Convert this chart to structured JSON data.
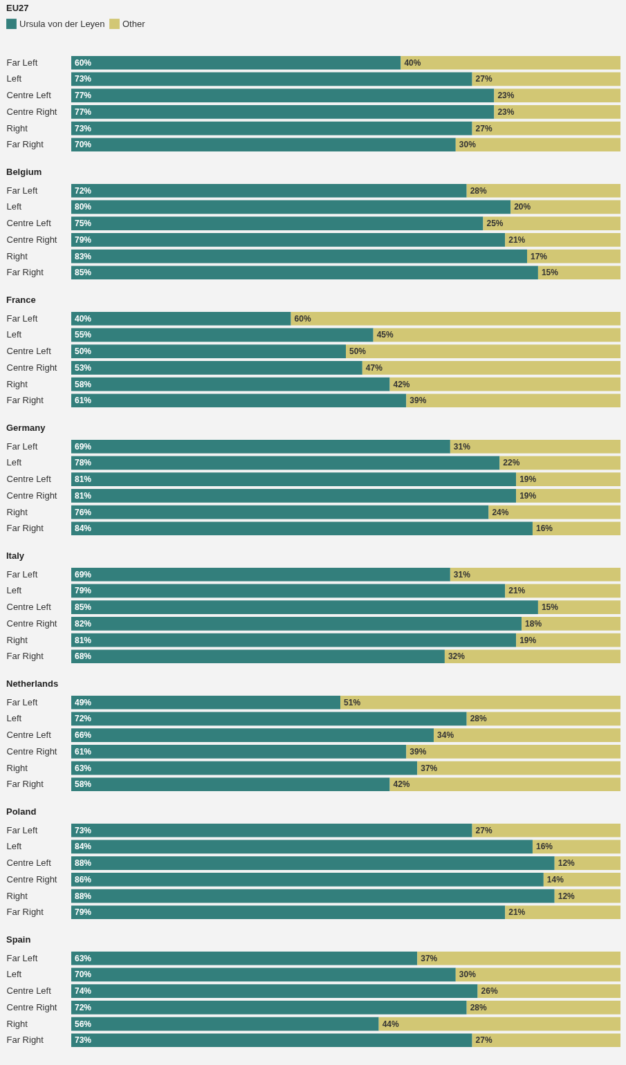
{
  "chart_data": [
    {
      "type": "bar",
      "orientation": "horizontal",
      "stacked": true,
      "title": "EU27",
      "legend": "top left",
      "categories": [
        "Far Left",
        "Left",
        "Centre Left",
        "Centre Right",
        "Right",
        "Far Right"
      ],
      "series": [
        {
          "name": "Ursula von der Leyen",
          "color": "#337f7c",
          "values": [
            60,
            73,
            77,
            77,
            73,
            70
          ],
          "value_labels": [
            "60%",
            "73%",
            "77%",
            "77%",
            "73%",
            "70%"
          ]
        },
        {
          "name": "Other",
          "color": "#d2c774",
          "values": [
            40,
            27,
            23,
            23,
            27,
            30
          ],
          "value_labels": [
            "40%",
            "27%",
            "23%",
            "23%",
            "27%",
            "30%"
          ]
        }
      ]
    },
    {
      "type": "bar",
      "orientation": "horizontal",
      "stacked": true,
      "title": "Belgium",
      "categories": [
        "Far Left",
        "Left",
        "Centre Left",
        "Centre Right",
        "Right",
        "Far Right"
      ],
      "series": [
        {
          "color": "#337f7c",
          "values": [
            72,
            80,
            75,
            79,
            83,
            85
          ],
          "value_labels": [
            "72%",
            "80%",
            "75%",
            "79%",
            "83%",
            "85%"
          ]
        },
        {
          "color": "#d2c774",
          "values": [
            28,
            20,
            25,
            21,
            17,
            15
          ],
          "value_labels": [
            "28%",
            "20%",
            "25%",
            "21%",
            "17%",
            "15%"
          ]
        }
      ]
    },
    {
      "type": "bar",
      "orientation": "horizontal",
      "stacked": true,
      "title": "France",
      "categories": [
        "Far Left",
        "Left",
        "Centre Left",
        "Centre Right",
        "Right",
        "Far Right"
      ],
      "series": [
        {
          "color": "#337f7c",
          "values": [
            40,
            55,
            50,
            53,
            58,
            61
          ],
          "value_labels": [
            "40%",
            "55%",
            "50%",
            "53%",
            "58%",
            "61%"
          ]
        },
        {
          "color": "#d2c774",
          "values": [
            60,
            45,
            50,
            47,
            42,
            39
          ],
          "value_labels": [
            "60%",
            "45%",
            "50%",
            "47%",
            "42%",
            "39%"
          ]
        }
      ]
    },
    {
      "type": "bar",
      "orientation": "horizontal",
      "stacked": true,
      "title": "Germany",
      "categories": [
        "Far Left",
        "Left",
        "Centre Left",
        "Centre Right",
        "Right",
        "Far Right"
      ],
      "series": [
        {
          "color": "#337f7c",
          "values": [
            69,
            78,
            81,
            81,
            76,
            84
          ],
          "value_labels": [
            "69%",
            "78%",
            "81%",
            "81%",
            "76%",
            "84%"
          ]
        },
        {
          "color": "#d2c774",
          "values": [
            31,
            22,
            19,
            19,
            24,
            16
          ],
          "value_labels": [
            "31%",
            "22%",
            "19%",
            "19%",
            "24%",
            "16%"
          ]
        }
      ]
    },
    {
      "type": "bar",
      "orientation": "horizontal",
      "stacked": true,
      "title": "Italy",
      "categories": [
        "Far Left",
        "Left",
        "Centre Left",
        "Centre Right",
        "Right",
        "Far Right"
      ],
      "series": [
        {
          "color": "#337f7c",
          "values": [
            69,
            79,
            85,
            82,
            81,
            68
          ],
          "value_labels": [
            "69%",
            "79%",
            "85%",
            "82%",
            "81%",
            "68%"
          ]
        },
        {
          "color": "#d2c774",
          "values": [
            31,
            21,
            15,
            18,
            19,
            32
          ],
          "value_labels": [
            "31%",
            "21%",
            "15%",
            "18%",
            "19%",
            "32%"
          ]
        }
      ]
    },
    {
      "type": "bar",
      "orientation": "horizontal",
      "stacked": true,
      "title": "Netherlands",
      "categories": [
        "Far Left",
        "Left",
        "Centre Left",
        "Centre Right",
        "Right",
        "Far Right"
      ],
      "series": [
        {
          "color": "#337f7c",
          "values": [
            49,
            72,
            66,
            61,
            63,
            58
          ],
          "value_labels": [
            "49%",
            "72%",
            "66%",
            "61%",
            "63%",
            "58%"
          ]
        },
        {
          "color": "#d2c774",
          "values": [
            51,
            28,
            34,
            39,
            37,
            42
          ],
          "value_labels": [
            "51%",
            "28%",
            "34%",
            "39%",
            "37%",
            "42%"
          ]
        }
      ]
    },
    {
      "type": "bar",
      "orientation": "horizontal",
      "stacked": true,
      "title": "Poland",
      "categories": [
        "Far Left",
        "Left",
        "Centre Left",
        "Centre Right",
        "Right",
        "Far Right"
      ],
      "series": [
        {
          "color": "#337f7c",
          "values": [
            73,
            84,
            88,
            86,
            88,
            79
          ],
          "value_labels": [
            "73%",
            "84%",
            "88%",
            "86%",
            "88%",
            "79%"
          ]
        },
        {
          "color": "#d2c774",
          "values": [
            27,
            16,
            12,
            14,
            12,
            21
          ],
          "value_labels": [
            "27%",
            "16%",
            "12%",
            "14%",
            "12%",
            "21%"
          ]
        }
      ]
    },
    {
      "type": "bar",
      "orientation": "horizontal",
      "stacked": true,
      "title": "Spain",
      "categories": [
        "Far Left",
        "Left",
        "Centre Left",
        "Centre Right",
        "Right",
        "Far Right"
      ],
      "series": [
        {
          "color": "#337f7c",
          "values": [
            63,
            70,
            74,
            72,
            56,
            73
          ],
          "value_labels": [
            "63%",
            "70%",
            "74%",
            "72%",
            "56%",
            "73%"
          ]
        },
        {
          "color": "#d2c774",
          "values": [
            37,
            30,
            26,
            28,
            44,
            27
          ],
          "value_labels": [
            "37%",
            "30%",
            "26%",
            "28%",
            "44%",
            "27%"
          ]
        }
      ]
    }
  ]
}
